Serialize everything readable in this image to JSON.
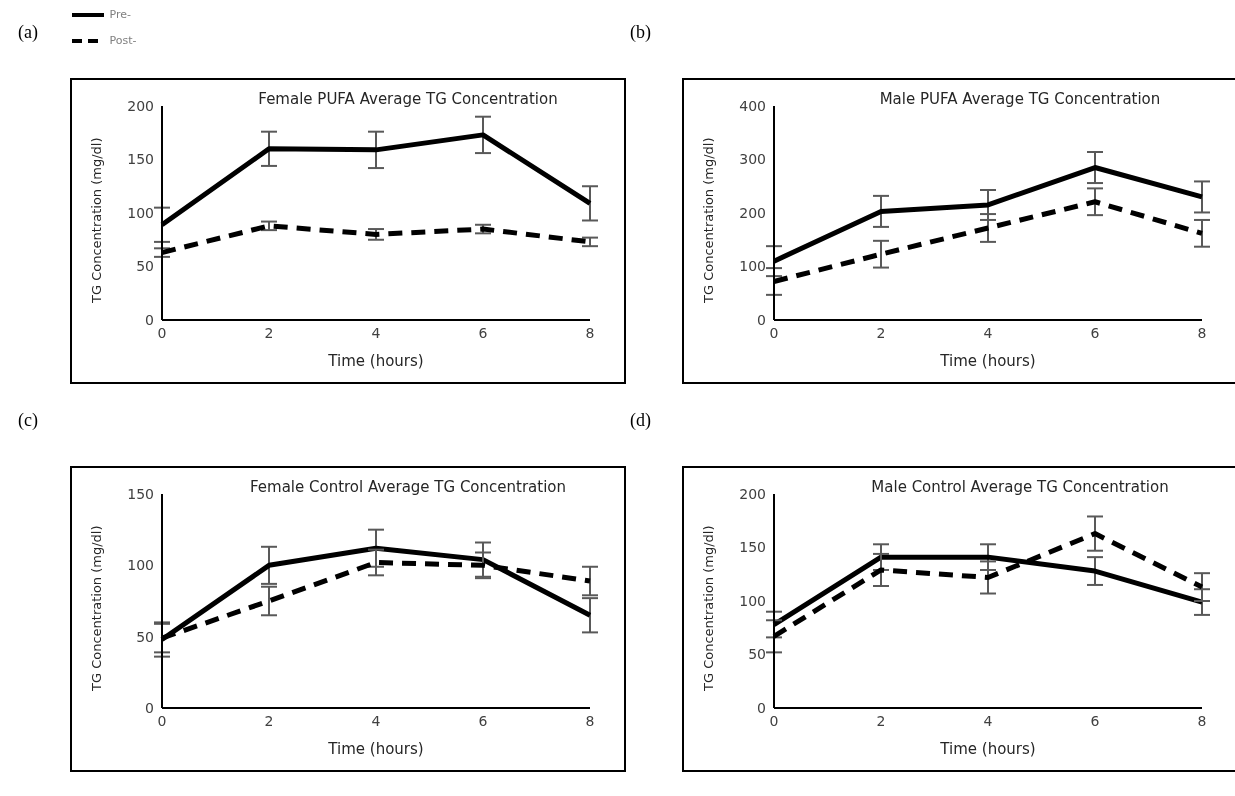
{
  "chart_data": [
    {
      "type": "line",
      "title": "Female PUFA Average TG Concentration",
      "xlabel": "Time (hours)",
      "ylabel": "TG Concentration (mg/dl)",
      "annotations": [
        "(a)"
      ],
      "categories": [
        "0",
        "2",
        "4",
        "6",
        "8"
      ],
      "ylim": [
        0,
        200
      ],
      "yticks": [
        0,
        50,
        100,
        150,
        200
      ],
      "grid": false,
      "legend": "top left",
      "marker": "none",
      "series": [
        {
          "name": "Pre-",
          "color": "#000000",
          "line_style": "solid",
          "values": [
            89,
            160,
            159,
            173,
            109
          ],
          "errors": [
            16,
            16,
            17,
            17,
            16
          ]
        },
        {
          "name": "Post-",
          "color": "#000000",
          "line_style": "dashed",
          "values": [
            63,
            88,
            80,
            85,
            73
          ],
          "errors": [
            4,
            4,
            5,
            4,
            4
          ]
        }
      ]
    },
    {
      "type": "line",
      "title": "Male PUFA Average TG Concentration",
      "xlabel": "Time (hours)",
      "ylabel": "TG Concentration (mg/dl)",
      "annotations": [
        "(b)"
      ],
      "categories": [
        "0",
        "2",
        "4",
        "6",
        "8"
      ],
      "ylim": [
        0,
        400
      ],
      "yticks": [
        0,
        100,
        200,
        300,
        400
      ],
      "grid": false,
      "legend": false,
      "marker": "none",
      "series": [
        {
          "color": "#000000",
          "line_style": "solid",
          "values": [
            110,
            203,
            215,
            285,
            230
          ],
          "errors": [
            28,
            29,
            28,
            29,
            29
          ]
        },
        {
          "color": "#000000",
          "line_style": "dashed",
          "values": [
            72,
            123,
            172,
            221,
            162
          ],
          "errors": [
            25,
            25,
            26,
            25,
            25
          ]
        }
      ]
    },
    {
      "type": "line",
      "title": "Female Control Average TG Concentration",
      "xlabel": "Time (hours)",
      "ylabel": "TG Concentration (mg/dl)",
      "annotations": [
        "(c)"
      ],
      "categories": [
        "0",
        "2",
        "4",
        "6",
        "8"
      ],
      "ylim": [
        0,
        150
      ],
      "yticks": [
        0,
        50,
        100,
        150
      ],
      "grid": false,
      "legend": false,
      "marker": "none",
      "series": [
        {
          "color": "#000000",
          "line_style": "solid",
          "values": [
            48,
            100,
            112,
            104,
            65
          ],
          "errors": [
            12,
            13,
            13,
            12,
            12
          ]
        },
        {
          "color": "#000000",
          "line_style": "dashed",
          "values": [
            49,
            75,
            102,
            100,
            89
          ],
          "errors": [
            10,
            10,
            9,
            9,
            10
          ]
        }
      ]
    },
    {
      "type": "line",
      "title": "Male Control Average TG Concentration",
      "xlabel": "Time (hours)",
      "ylabel": "TG Concentration (mg/dl)",
      "annotations": [
        "(d)"
      ],
      "categories": [
        "0",
        "2",
        "4",
        "6",
        "8"
      ],
      "ylim": [
        0,
        200
      ],
      "yticks": [
        0,
        50,
        100,
        150,
        200
      ],
      "grid": false,
      "legend": false,
      "marker": "none",
      "series": [
        {
          "color": "#000000",
          "line_style": "solid",
          "values": [
            78,
            141,
            141,
            128,
            99
          ],
          "errors": [
            12,
            12,
            12,
            13,
            12
          ]
        },
        {
          "color": "#000000",
          "line_style": "dashed",
          "values": [
            67,
            129,
            122,
            163,
            113
          ],
          "errors": [
            15,
            15,
            15,
            16,
            13
          ]
        }
      ]
    }
  ]
}
